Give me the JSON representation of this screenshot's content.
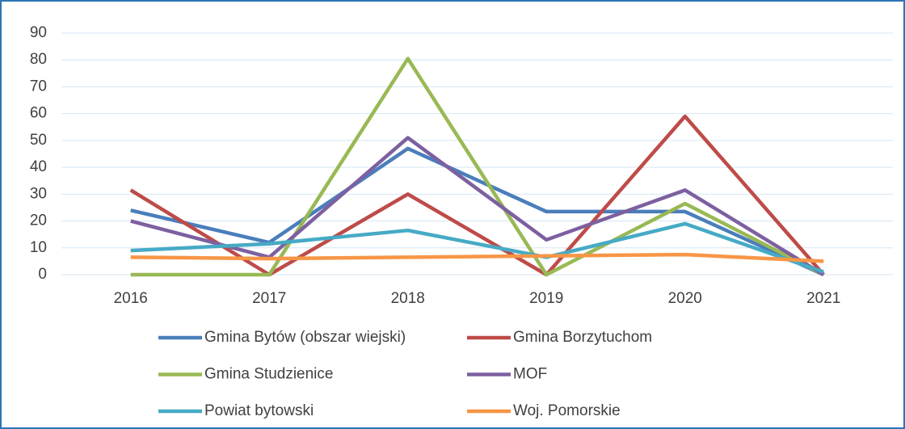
{
  "chart_data": {
    "type": "line",
    "categories": [
      "2016",
      "2017",
      "2018",
      "2019",
      "2020",
      "2021"
    ],
    "series": [
      {
        "name": "Gmina Bytów (obszar wiejski)",
        "color": "#4a7ebb",
        "values": [
          24,
          12,
          47,
          23.5,
          23.5,
          0
        ]
      },
      {
        "name": "Gmina Borzytuchom",
        "color": "#be4b48",
        "values": [
          31.5,
          0,
          30,
          0,
          59,
          0
        ]
      },
      {
        "name": "Gmina Studzienice",
        "color": "#98b954",
        "values": [
          0,
          0,
          80.5,
          0,
          26.5,
          0
        ]
      },
      {
        "name": "MOF",
        "color": "#7d60a0",
        "values": [
          20,
          6.5,
          51,
          13,
          31.5,
          0
        ]
      },
      {
        "name": "Powiat bytowski",
        "color": "#46aac5",
        "values": [
          9,
          11.5,
          16.5,
          6.5,
          19,
          1
        ]
      },
      {
        "name": "Woj. Pomorskie",
        "color": "#f79646",
        "values": [
          6.5,
          6,
          6.5,
          7,
          7.5,
          5
        ]
      }
    ],
    "ylim": [
      0,
      90
    ],
    "yticks": [
      0,
      10,
      20,
      30,
      40,
      50,
      60,
      70,
      80,
      90
    ],
    "grid": true,
    "legend": "bottom"
  }
}
